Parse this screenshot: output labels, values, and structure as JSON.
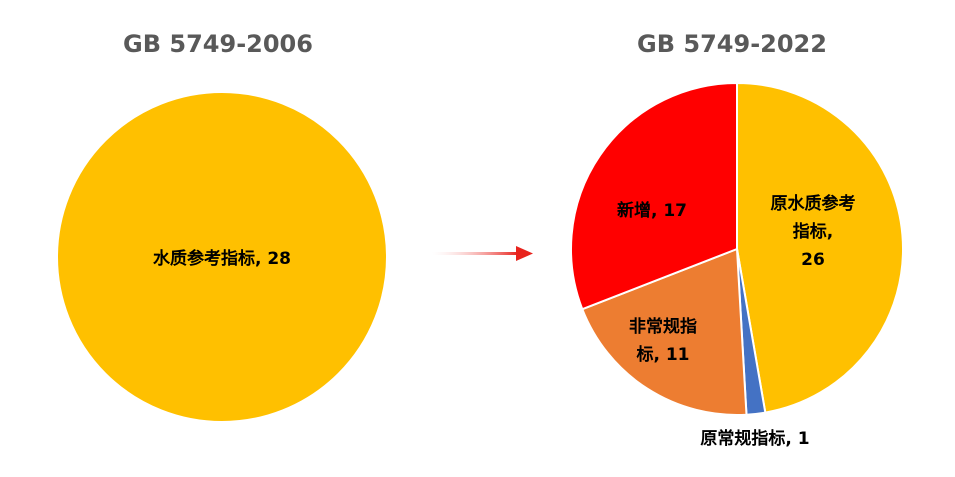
{
  "chart_data": [
    {
      "type": "pie",
      "title": "GB 5749-2006",
      "slices": [
        {
          "name": "水质参考指标",
          "value": 28,
          "color": "#FFC000",
          "label_lines": [
            "水质参考指标, 28"
          ]
        }
      ]
    },
    {
      "type": "pie",
      "title": "GB 5749-2022",
      "slices": [
        {
          "name": "原水质参考指标",
          "value": 26,
          "color": "#FFC000",
          "label_lines": [
            "原水质参考",
            "指标,",
            "26"
          ]
        },
        {
          "name": "原常规指标",
          "value": 1,
          "color": "#4472C4",
          "label_lines": [
            "原常规指标, 1"
          ]
        },
        {
          "name": "非常规指标",
          "value": 11,
          "color": "#ED7D31",
          "label_lines": [
            "非常规指",
            "标, 11"
          ]
        },
        {
          "name": "新增",
          "value": 17,
          "color": "#FF0000",
          "label_lines": [
            "新增, 17"
          ]
        }
      ]
    }
  ],
  "arrow": {
    "color": "#E8231D",
    "icon": "right-arrow-icon"
  }
}
